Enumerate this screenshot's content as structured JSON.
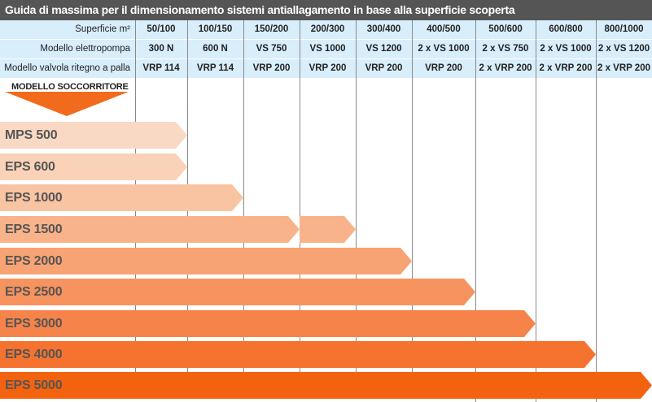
{
  "title": "Guida di massima per il dimensionamento sistemi antiallagamento in base alla superficie scoperta",
  "table": {
    "rows": [
      {
        "label": "Superficie m²",
        "cells": [
          "50/100",
          "100/150",
          "150/200",
          "200/300",
          "300/400",
          "400/500",
          "500/600",
          "600/800",
          "800/1000"
        ]
      },
      {
        "label": "Modello elettropompa",
        "cells": [
          "300 N",
          "600 N",
          "VS 750",
          "VS 1000",
          "VS 1200",
          "2 x VS 1000",
          "2 x VS 750",
          "2 x VS 1000",
          "2 x VS 1200"
        ]
      },
      {
        "label": "Modello valvola ritegno a palla",
        "cells": [
          "VRP 114",
          "VRP 114",
          "VRP 200",
          "VRP 200",
          "VRP 200",
          "VRP 200",
          "2 x VRP 200",
          "2 x VRP 200",
          "2 x VRP 200"
        ]
      }
    ]
  },
  "soccorritore_label": "MODELLO SOCCORRITORE",
  "colors": {
    "header_bg": "#555555",
    "table_bg": "#d8eefb",
    "arrow": "#f26b1d"
  },
  "models": [
    {
      "name": "MPS 500",
      "span_end": 1,
      "color": "#f9d9c4"
    },
    {
      "name": "EPS 600",
      "span_end": 1,
      "color": "#f9d2b8"
    },
    {
      "name": "EPS 1000",
      "span_end": 2,
      "color": "#f9c4a2"
    },
    {
      "name": "EPS 1500",
      "span_end": 3,
      "extra_span_end": 4,
      "color": "#f9b38a"
    },
    {
      "name": "EPS 2000",
      "span_end": 5,
      "color": "#f8a373"
    },
    {
      "name": "EPS 2500",
      "span_end": 6,
      "color": "#f7935e"
    },
    {
      "name": "EPS 3000",
      "span_end": 7,
      "color": "#f6834a"
    },
    {
      "name": "EPS 4000",
      "span_end": 8,
      "color": "#f5722f"
    },
    {
      "name": "EPS 5000",
      "span_end": 9,
      "color": "#f3620f"
    }
  ]
}
